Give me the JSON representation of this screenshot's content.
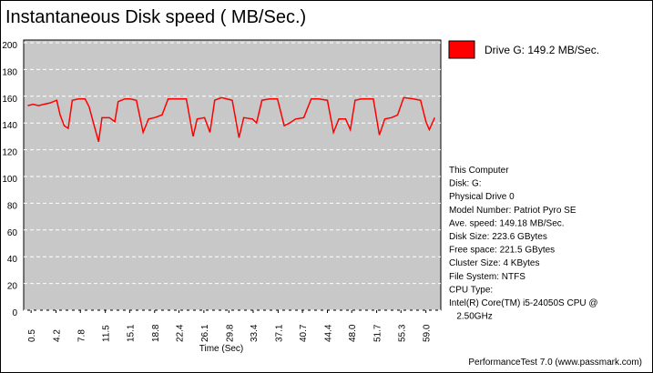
{
  "chart_data": {
    "type": "line",
    "title": "Instantaneous Disk speed ( MB/Sec.)",
    "x_label": "Time (Sec)",
    "xlim": [
      -0.6,
      61.2
    ],
    "xticks": [
      0.5,
      4.2,
      7.8,
      11.5,
      15.1,
      18.8,
      22.4,
      26.1,
      29.8,
      33.4,
      37.1,
      40.7,
      44.4,
      {
        "value": 48,
        "label": "48.0"
      },
      51.7,
      55.3,
      {
        "value": 59,
        "label": "59.0"
      }
    ],
    "ylim": [
      0,
      200
    ],
    "yticks": [
      0,
      20,
      40,
      60,
      80,
      100,
      120,
      140,
      160,
      180,
      200
    ],
    "grid": true,
    "legend": "top-right",
    "x": [
      0.0,
      0.8,
      1.6,
      2.4,
      3.3,
      4.3,
      4.8,
      5.4,
      6.0,
      6.6,
      7.5,
      8.5,
      9.1,
      9.9,
      10.5,
      11.0,
      12.1,
      12.9,
      13.4,
      14.4,
      15.2,
      16.1,
      17.1,
      17.9,
      18.8,
      19.9,
      20.8,
      21.8,
      23.5,
      24.5,
      25.1,
      26.2,
      27.0,
      27.7,
      28.7,
      30.3,
      31.3,
      32.0,
      33.3,
      33.9,
      34.7,
      35.8,
      37.0,
      38.0,
      38.8,
      39.7,
      40.9,
      42.0,
      43.1,
      44.4,
      45.3,
      46.1,
      47.1,
      47.8,
      48.5,
      49.4,
      51.2,
      52.1,
      52.9,
      53.9,
      54.8,
      55.7,
      57.2,
      58.2,
      59.0,
      59.5,
      60.3
    ],
    "series": [
      {
        "name": "Drive G: 149.2 MB/Sec.",
        "color": "#ff0000",
        "values": [
          153,
          154,
          153,
          154,
          155,
          157,
          146,
          138,
          136,
          157,
          158,
          158,
          152,
          137,
          126,
          144,
          144,
          141,
          156,
          158,
          158,
          157,
          133,
          143,
          144,
          146,
          158,
          158,
          158,
          130,
          143,
          144,
          133,
          157,
          159,
          157,
          129,
          144,
          143,
          140,
          157,
          158,
          158,
          138,
          140,
          143,
          144,
          158,
          158,
          157,
          133,
          143,
          143,
          135,
          157,
          158,
          158,
          131,
          143,
          144,
          146,
          159,
          158,
          157,
          141,
          135,
          144
        ]
      }
    ],
    "info_lines": [
      "This Computer",
      "Disk: G:",
      "Physical Drive 0",
      "Model Number: Patriot Pyro SE",
      "Ave. speed: 149.18 MB/Sec.",
      "Disk Size: 223.6 GBytes",
      "Free space: 221.5 GBytes",
      "Cluster Size: 4 KBytes",
      "File System: NTFS",
      "CPU Type:",
      "Intel(R) Core(TM) i5-24050S CPU @",
      "   2.50GHz"
    ],
    "footer": "PerformanceTest 7.0 (www.passmark.com)"
  }
}
